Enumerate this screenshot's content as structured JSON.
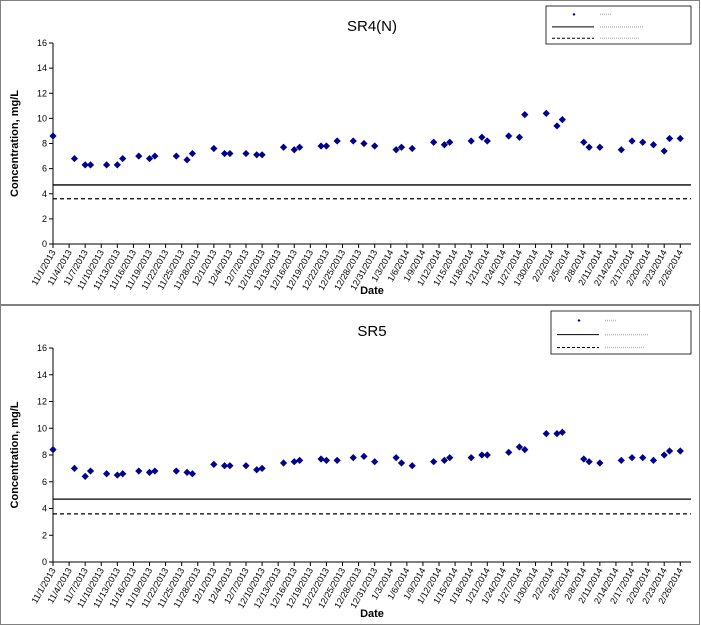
{
  "chart_data": [
    {
      "type": "scatter",
      "title": "SR4(N)",
      "xlabel": "Date",
      "ylabel": "Concentration, mg/L",
      "ylim": [
        0,
        16
      ],
      "yticks": [
        0,
        2,
        4,
        6,
        8,
        10,
        12,
        14,
        16
      ],
      "xlim": [
        "2013-11-01",
        "2014-02-28"
      ],
      "xticks": [
        "11/1/2013",
        "11/4/2013",
        "11/7/2013",
        "11/10/2013",
        "11/13/2013",
        "11/16/2013",
        "11/19/2013",
        "11/22/2013",
        "11/25/2013",
        "11/28/2013",
        "12/1/2013",
        "12/4/2013",
        "12/7/2013",
        "12/10/2013",
        "12/13/2013",
        "12/16/2013",
        "12/19/2013",
        "12/22/2013",
        "12/25/2013",
        "12/28/2013",
        "12/31/2013",
        "1/3/2014",
        "1/6/2014",
        "1/9/2014",
        "1/12/2014",
        "1/15/2014",
        "1/18/2014",
        "1/21/2014",
        "1/24/2014",
        "1/27/2014",
        "1/30/2014",
        "2/2/2014",
        "2/5/2014",
        "2/8/2014",
        "2/11/2014",
        "2/14/2014",
        "2/17/2014",
        "2/20/2014",
        "2/23/2014",
        "2/26/2014"
      ],
      "series": [
        {
          "marker": "diamond",
          "color": "#00008B",
          "x": [
            "2013-11-01",
            "2013-11-05",
            "2013-11-07",
            "2013-11-08",
            "2013-11-11",
            "2013-11-13",
            "2013-11-14",
            "2013-11-17",
            "2013-11-19",
            "2013-11-20",
            "2013-11-24",
            "2013-11-26",
            "2013-11-27",
            "2013-12-01",
            "2013-12-03",
            "2013-12-04",
            "2013-12-07",
            "2013-12-09",
            "2013-12-10",
            "2013-12-14",
            "2013-12-16",
            "2013-12-17",
            "2013-12-21",
            "2013-12-22",
            "2013-12-24",
            "2013-12-27",
            "2013-12-29",
            "2013-12-31",
            "2014-01-04",
            "2014-01-05",
            "2014-01-07",
            "2014-01-11",
            "2014-01-13",
            "2014-01-14",
            "2014-01-18",
            "2014-01-20",
            "2014-01-21",
            "2014-01-25",
            "2014-01-27",
            "2014-01-28",
            "2014-02-01",
            "2014-02-03",
            "2014-02-04",
            "2014-02-08",
            "2014-02-09",
            "2014-02-11",
            "2014-02-15",
            "2014-02-17",
            "2014-02-19",
            "2014-02-21",
            "2014-02-23",
            "2014-02-24",
            "2014-02-26"
          ],
          "y": [
            8.6,
            6.8,
            6.3,
            6.3,
            6.3,
            6.3,
            6.8,
            7.0,
            6.8,
            7.0,
            7.0,
            6.7,
            7.2,
            7.6,
            7.2,
            7.2,
            7.2,
            7.1,
            7.1,
            7.7,
            7.5,
            7.7,
            7.8,
            7.8,
            8.2,
            8.2,
            8.0,
            7.8,
            7.5,
            7.7,
            7.6,
            8.1,
            7.9,
            8.1,
            8.2,
            8.5,
            8.2,
            8.6,
            8.5,
            10.3,
            10.4,
            9.4,
            9.9,
            8.1,
            7.7,
            7.7,
            7.5,
            8.2,
            8.1,
            7.9,
            7.4,
            8.4,
            8.4
          ]
        }
      ],
      "reference_lines": [
        {
          "style": "solid",
          "value": 4.7
        },
        {
          "style": "dashed",
          "value": 3.6
        }
      ],
      "legend": {
        "placement": "top-right"
      }
    },
    {
      "type": "scatter",
      "title": "SR5",
      "xlabel": "Date",
      "ylabel": "Concentration, mg/L",
      "ylim": [
        0,
        16
      ],
      "yticks": [
        0,
        2,
        4,
        6,
        8,
        10,
        12,
        14,
        16
      ],
      "xlim": [
        "2013-11-01",
        "2014-02-28"
      ],
      "xticks": [
        "11/1/2013",
        "11/4/2013",
        "11/7/2013",
        "11/10/2013",
        "11/13/2013",
        "11/16/2013",
        "11/19/2013",
        "11/22/2013",
        "11/25/2013",
        "11/28/2013",
        "12/1/2013",
        "12/4/2013",
        "12/7/2013",
        "12/10/2013",
        "12/13/2013",
        "12/16/2013",
        "12/19/2013",
        "12/22/2013",
        "12/25/2013",
        "12/28/2013",
        "12/31/2013",
        "1/3/2014",
        "1/6/2014",
        "1/9/2014",
        "1/12/2014",
        "1/15/2014",
        "1/18/2014",
        "1/21/2014",
        "1/24/2014",
        "1/27/2014",
        "1/30/2014",
        "2/2/2014",
        "2/5/2014",
        "2/8/2014",
        "2/11/2014",
        "2/14/2014",
        "2/17/2014",
        "2/20/2014",
        "2/23/2014",
        "2/26/2014"
      ],
      "series": [
        {
          "marker": "diamond",
          "color": "#00008B",
          "x": [
            "2013-11-01",
            "2013-11-05",
            "2013-11-07",
            "2013-11-08",
            "2013-11-11",
            "2013-11-13",
            "2013-11-14",
            "2013-11-17",
            "2013-11-19",
            "2013-11-20",
            "2013-11-24",
            "2013-11-26",
            "2013-11-27",
            "2013-12-01",
            "2013-12-03",
            "2013-12-04",
            "2013-12-07",
            "2013-12-09",
            "2013-12-10",
            "2013-12-14",
            "2013-12-16",
            "2013-12-17",
            "2013-12-21",
            "2013-12-22",
            "2013-12-24",
            "2013-12-27",
            "2013-12-29",
            "2013-12-31",
            "2014-01-04",
            "2014-01-05",
            "2014-01-07",
            "2014-01-11",
            "2014-01-13",
            "2014-01-14",
            "2014-01-18",
            "2014-01-20",
            "2014-01-21",
            "2014-01-25",
            "2014-01-27",
            "2014-01-28",
            "2014-02-01",
            "2014-02-03",
            "2014-02-04",
            "2014-02-08",
            "2014-02-09",
            "2014-02-11",
            "2014-02-15",
            "2014-02-17",
            "2014-02-19",
            "2014-02-21",
            "2014-02-23",
            "2014-02-24",
            "2014-02-26"
          ],
          "y": [
            8.4,
            7.0,
            6.4,
            6.8,
            6.6,
            6.5,
            6.6,
            6.8,
            6.7,
            6.8,
            6.8,
            6.7,
            6.6,
            7.3,
            7.2,
            7.2,
            7.2,
            6.9,
            7.0,
            7.4,
            7.5,
            7.6,
            7.7,
            7.6,
            7.6,
            7.8,
            7.9,
            7.5,
            7.8,
            7.4,
            7.2,
            7.5,
            7.6,
            7.8,
            7.8,
            8.0,
            8.0,
            8.2,
            8.6,
            8.4,
            9.6,
            9.6,
            9.7,
            7.7,
            7.5,
            7.4,
            7.6,
            7.8,
            7.8,
            7.6,
            8.0,
            8.3,
            8.3
          ]
        }
      ],
      "reference_lines": [
        {
          "style": "solid",
          "value": 4.7
        },
        {
          "style": "dashed",
          "value": 3.6
        }
      ],
      "legend": {
        "placement": "top-right"
      }
    }
  ]
}
